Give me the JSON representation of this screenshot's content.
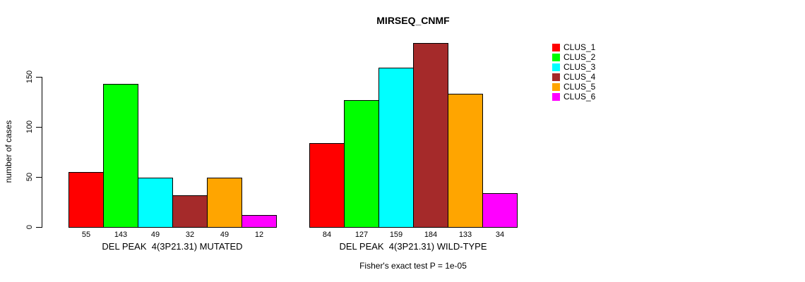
{
  "chart_data": {
    "type": "bar",
    "title": "MIRSEQ_CNMF",
    "ylabel": "number of cases",
    "xlabel": "",
    "yticks": [
      0,
      50,
      100,
      150
    ],
    "ylim": [
      0,
      190
    ],
    "grid": false,
    "legend_position": "right",
    "annotation": "Fisher's exact test P = 1e-05",
    "clusters": [
      {
        "name": "CLUS_1",
        "color": "#FF0000"
      },
      {
        "name": "CLUS_2",
        "color": "#00FF00"
      },
      {
        "name": "CLUS_3",
        "color": "#00FFFF"
      },
      {
        "name": "CLUS_4",
        "color": "#A52A2A"
      },
      {
        "name": "CLUS_5",
        "color": "#FFA500"
      },
      {
        "name": "CLUS_6",
        "color": "#FF00FF"
      }
    ],
    "groups": [
      {
        "label": "DEL PEAK  4(3P21.31) MUTATED",
        "values": [
          55,
          143,
          49,
          32,
          49,
          12
        ]
      },
      {
        "label": "DEL PEAK  4(3P21.31) WILD-TYPE",
        "values": [
          84,
          127,
          159,
          184,
          133,
          34
        ]
      }
    ]
  }
}
